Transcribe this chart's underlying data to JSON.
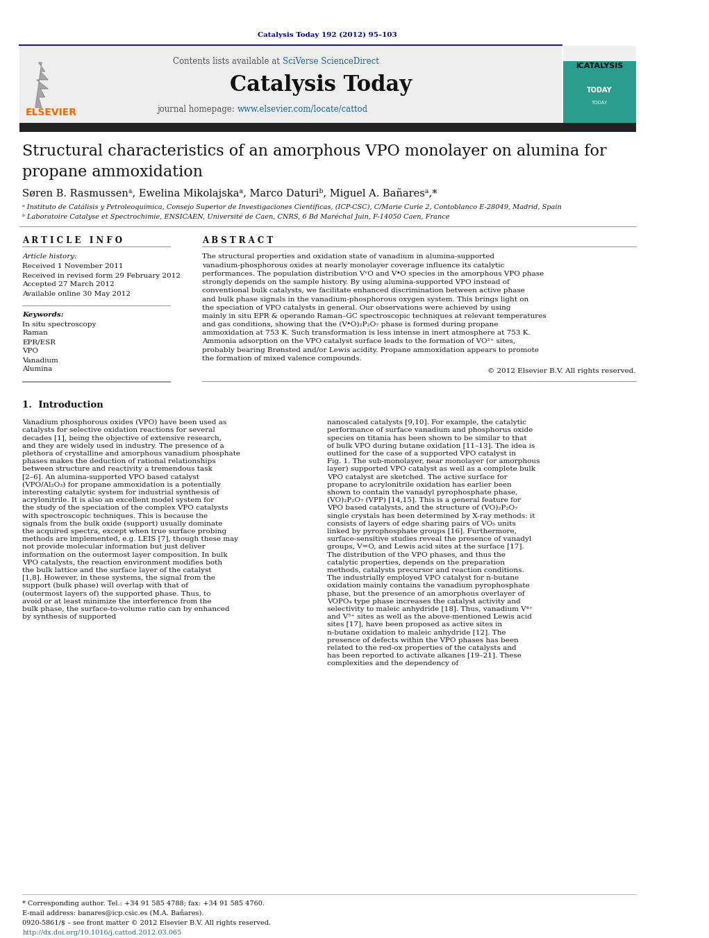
{
  "doi_text": "Catalysis Today 192 (2012) 95–103",
  "doi_color": "#00008B",
  "journal_name": "Catalysis Today",
  "contents_link_color": "#1a6496",
  "homepage_link": "www.elsevier.com/locate/cattod",
  "link_color": "#1a6496",
  "divider_color": "#1a1a6e",
  "black_bar_color": "#222222",
  "authors": "Søren B. Rasmussenᵃ, Ewelina Mikolajskaᵃ, Marco Daturiᵇ, Miguel A. Bañaresᵃ,*",
  "affil_a": "ᵃ Instituto de Catálisis y Petroleoquímica, Consejo Superior de Investigaciones Científicas, (ICP-CSC), C/Marie Curie 2, Contoblanco E-28049, Madrid, Spain",
  "affil_b": "ᵇ Laboratoire Catalyse et Spectrochimie, ENSICAEN, Université de Caen, CNRS, 6 Bd Maréchal Juin, F-14050 Caen, France",
  "article_info_header": "A R T I C L E   I N F O",
  "abstract_header": "A B S T R A C T",
  "article_history_label": "Article history:",
  "received": "Received 1 November 2011",
  "received_revised": "Received in revised form 29 February 2012",
  "accepted": "Accepted 27 March 2012",
  "available": "Available online 30 May 2012",
  "keywords_label": "Keywords:",
  "keywords": [
    "In situ spectroscopy",
    "Raman",
    "EPR/ESR",
    "VPO",
    "Vanadium",
    "Alumina"
  ],
  "abstract_text": "The structural properties and oxidation state of vanadium in alumina-supported vanadium-phosphorous oxides at nearly monolayer coverage influence its catalytic performances. The population distribution VᵛO and VᵜO species in the amorphous VPO phase strongly depends on the sample history. By using alumina-supported VPO instead of conventional bulk catalysts, we facilitate enhanced discrimination between active phase and bulk phase signals in the vanadium-phosphorous oxygen system. This brings light on the speciation of VPO catalysts in general. Our observations were achieved by using mainly in situ EPR & operando Raman–GC spectroscopic techniques at relevant temperatures and gas conditions, showing that the (VᵜO)₂P₂O₇ phase is formed during propane ammoxidation at 753 K. Such transformation is less intense in inert atmosphere at 753 K. Ammonia adsorption on the VPO catalyst surface leads to the formation of VO²⁺ sites, probably bearing Brønsted and/or Lewis acidity. Propane ammoxidation appears to promote the formation of mixed valence compounds.",
  "copyright": "© 2012 Elsevier B.V. All rights reserved.",
  "intro_header": "1.  Introduction",
  "intro_col1": "Vanadium phosphorous oxides (VPO) have been used as catalysts for selective oxidation reactions for several decades [1], being the objective of extensive research, and they are widely used in industry. The presence of a plethora of crystalline and amorphous vanadium phosphate phases makes the deduction of rational relationships between structure and reactivity a tremendous task [2–6]. An alumina-supported VPO based catalyst (VPO/Al₂O₃) for propane ammoxidation is a potentially interesting catalytic system for industrial synthesis of acrylonitrile. It is also an excellent model system for the study of the speciation of the complex VPO catalysts with spectroscopic techniques. This is because the signals from the bulk oxide (support) usually dominate the acquired spectra, except when true surface probing methods are implemented, e.g. LEIS [7], though these may not provide molecular information but just deliver information on the outermost layer composition. In bulk VPO catalysts, the reaction environment modifies both the bulk lattice and the surface layer of the catalyst [1,8]. However, in these systems, the signal from the support (bulk phase) will overlap with that of (outermost layers of) the supported phase. Thus, to avoid or at least minimize the interference from the bulk phase, the surface-to-volume ratio can by enhanced by synthesis of supported",
  "intro_col2": "nanoscaled catalysts [9,10]. For example, the catalytic performance of surface vanadium and phosphorus oxide species on titania has been shown to be similar to that of bulk VPO during butane oxidation [11–13]. The idea is outlined for the case of a supported VPO catalyst in Fig. 1. The sub-monolayer, near monolayer (or amorphous layer) supported VPO catalyst as well as a complete bulk VPO catalyst are sketched.    The active surface for propane to acrylonitrile oxidation has earlier been shown to contain the vanadyl pyrophosphate phase, (VO)₂P₂O₇ (VPP) [14,15]. This is a general feature for VPO based catalysts, and the structure of (VO)₂P₂O₇ single crystals has been determined by X-ray methods: it consists of layers of edge sharing pairs of VO₅ units linked by pyrophosphate groups [16]. Furthermore, surface-sensitive studies reveal the presence of vanadyl groups, V=O, and Lewis acid sites at the surface [17]. The distribution of the VPO phases, and thus the catalytic properties, depends on the preparation methods, catalysts precursor and reaction conditions. The industrially employed VPO catalyst for n-butane oxidation mainly contains the vanadium pyrophosphate phase, but the presence of an amorphous overlayer of VOPO₄ type phase increases the catalyst activity and selectivity to maleic anhydride [18]. Thus, vanadium V⁴⁺ and V⁵⁺ sites as well as the above-mentioned Lewis acid sites [17], have been proposed as active sites in n-butane oxidation to maleic anhydride [12]. The presence of defects within the VPO phases has been related to the red-ox properties of the catalysts and has been reported to activate alkanes [19–21]. These complexities and the dependency of",
  "footnote_star": "* Corresponding author. Tel.: +34 91 585 4788; fax: +34 91 585 4760.",
  "footnote_email": "E-mail address: banares@icp.csic.es (M.A. Bañares).",
  "issn_text": "0920-5861/$ – see front matter © 2012 Elsevier B.V. All rights reserved.",
  "doi_footer": "http://dx.doi.org/10.1016/j.cattod.2012.03.065",
  "bg_color": "#ffffff",
  "text_color": "#000000"
}
